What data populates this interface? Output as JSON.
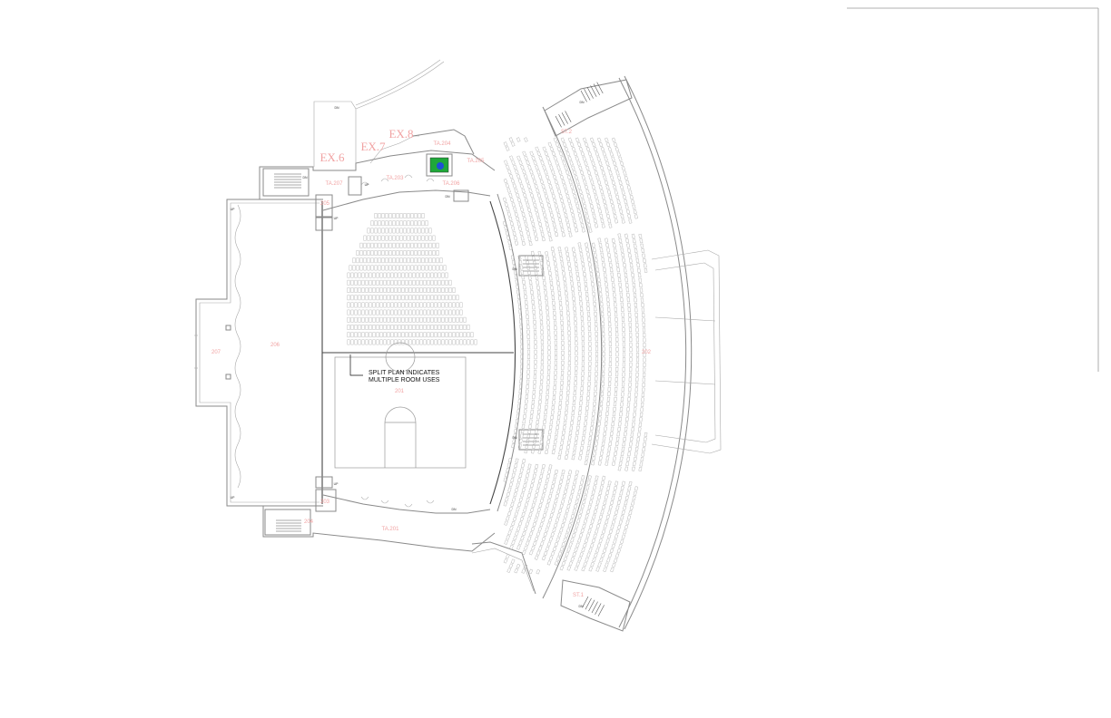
{
  "exits": [
    {
      "id": "ex6",
      "label": "EX.6"
    },
    {
      "id": "ex7",
      "label": "EX.7"
    },
    {
      "id": "ex8",
      "label": "EX.8"
    }
  ],
  "rooms": [
    {
      "id": "ta204",
      "label": "TA.204"
    },
    {
      "id": "ta205",
      "label": "TA.205"
    },
    {
      "id": "ta206",
      "label": "TA.206"
    },
    {
      "id": "ta207",
      "label": "TA.207"
    },
    {
      "id": "ta203",
      "label": "TA.203"
    },
    {
      "id": "ta201",
      "label": "TA.201"
    },
    {
      "id": "r205",
      "label": "205"
    },
    {
      "id": "r207",
      "label": "207"
    },
    {
      "id": "r206",
      "label": "206"
    },
    {
      "id": "r201",
      "label": "201"
    },
    {
      "id": "r202",
      "label": "202"
    },
    {
      "id": "r203",
      "label": "203"
    },
    {
      "id": "r204",
      "label": "204"
    },
    {
      "id": "st1",
      "label": "ST.1"
    },
    {
      "id": "st2",
      "label": "ST.2"
    }
  ],
  "note": {
    "line1": "SPLIT PLAN INDICATES",
    "line2": "MULTIPLE ROOM USES"
  },
  "stair_markers": {
    "dn": "DN",
    "up": "UP"
  },
  "highlight": {
    "fill": "#1fa83a",
    "marker": "#1f4fd6"
  }
}
